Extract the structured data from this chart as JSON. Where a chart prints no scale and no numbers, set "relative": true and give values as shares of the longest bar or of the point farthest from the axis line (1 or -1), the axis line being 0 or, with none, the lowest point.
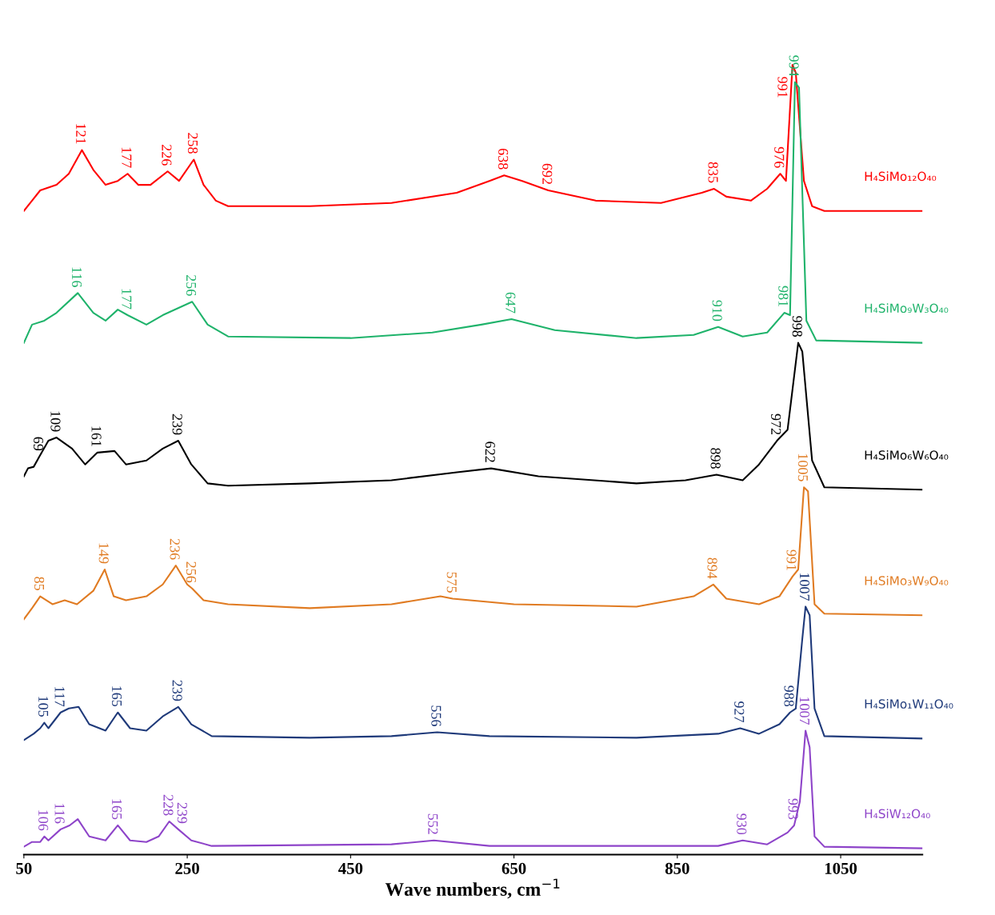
{
  "chart_data": {
    "type": "line",
    "relative": true,
    "xlabel": "Wave numbers, cm$^{−1}$",
    "xlim": [
      50,
      1150
    ],
    "xticks": [
      50,
      250,
      450,
      650,
      850,
      1050
    ],
    "grid": false,
    "legend": false,
    "marker": "none",
    "line_style": "solid",
    "series": [
      {
        "name": "H₄SiMo₁₂O₄₀",
        "color": "#ff0000",
        "x": [
          50,
          60,
          70,
          90,
          105,
          121,
          135,
          150,
          165,
          177,
          190,
          205,
          226,
          240,
          258,
          270,
          285,
          300,
          400,
          500,
          580,
          620,
          638,
          660,
          692,
          750,
          830,
          880,
          895,
          910,
          940,
          960,
          976,
          983,
          991,
          995,
          1005,
          1015,
          1030,
          1150
        ],
        "values": [
          0.815,
          0.828,
          0.841,
          0.848,
          0.862,
          0.892,
          0.867,
          0.848,
          0.853,
          0.862,
          0.848,
          0.848,
          0.865,
          0.853,
          0.88,
          0.848,
          0.828,
          0.821,
          0.821,
          0.825,
          0.838,
          0.853,
          0.86,
          0.853,
          0.841,
          0.828,
          0.825,
          0.838,
          0.843,
          0.833,
          0.828,
          0.843,
          0.862,
          0.853,
          1.0,
          0.99,
          0.853,
          0.821,
          0.815,
          0.815
        ]
      },
      {
        "name": "H₄SiMo₉W₃O₄₀",
        "color": "#1fb36b",
        "x": [
          50,
          60,
          75,
          90,
          116,
          135,
          150,
          165,
          177,
          200,
          220,
          256,
          275,
          300,
          450,
          550,
          610,
          647,
          700,
          800,
          870,
          900,
          930,
          960,
          981,
          988,
          994,
          999,
          1008,
          1020,
          1150
        ],
        "values": [
          0.648,
          0.671,
          0.676,
          0.686,
          0.711,
          0.686,
          0.676,
          0.69,
          0.683,
          0.671,
          0.683,
          0.7,
          0.671,
          0.656,
          0.654,
          0.661,
          0.671,
          0.678,
          0.664,
          0.654,
          0.658,
          0.668,
          0.656,
          0.661,
          0.686,
          0.683,
          0.978,
          0.971,
          0.676,
          0.651,
          0.648
        ]
      },
      {
        "name": "H₄SiMo₆W₆O₄₀",
        "color": "#000000",
        "x": [
          50,
          55,
          62,
          69,
          80,
          90,
          109,
          125,
          140,
          161,
          175,
          200,
          220,
          239,
          255,
          275,
          300,
          400,
          500,
          580,
          622,
          680,
          800,
          860,
          898,
          930,
          950,
          972,
          985,
          998,
          1003,
          1015,
          1030,
          1150
        ],
        "values": [
          0.479,
          0.489,
          0.491,
          0.504,
          0.524,
          0.528,
          0.514,
          0.494,
          0.509,
          0.511,
          0.494,
          0.499,
          0.514,
          0.524,
          0.494,
          0.47,
          0.467,
          0.47,
          0.474,
          0.484,
          0.489,
          0.479,
          0.47,
          0.474,
          0.481,
          0.474,
          0.494,
          0.524,
          0.538,
          0.648,
          0.637,
          0.499,
          0.465,
          0.462
        ]
      },
      {
        "name": "H₄SiMo₃W₉O₄₀",
        "color": "#e07b22",
        "x": [
          50,
          60,
          70,
          85,
          100,
          115,
          135,
          149,
          160,
          175,
          200,
          220,
          236,
          250,
          256,
          270,
          300,
          400,
          500,
          560,
          575,
          650,
          800,
          870,
          894,
          910,
          950,
          975,
          991,
          998,
          1005,
          1010,
          1018,
          1030,
          1150
        ],
        "values": [
          0.298,
          0.312,
          0.327,
          0.317,
          0.322,
          0.317,
          0.334,
          0.361,
          0.327,
          0.322,
          0.327,
          0.342,
          0.366,
          0.342,
          0.337,
          0.322,
          0.317,
          0.312,
          0.317,
          0.327,
          0.324,
          0.317,
          0.314,
          0.327,
          0.342,
          0.324,
          0.317,
          0.327,
          0.352,
          0.361,
          0.465,
          0.46,
          0.317,
          0.305,
          0.303
        ]
      },
      {
        "name": "H₄SiMo₁W₁₁O₄₀",
        "color": "#1f3a7a",
        "x": [
          50,
          62,
          70,
          75,
          80,
          95,
          105,
          117,
          130,
          150,
          165,
          180,
          200,
          220,
          239,
          255,
          280,
          400,
          500,
          556,
          620,
          800,
          900,
          927,
          950,
          975,
          988,
          995,
          1003,
          1007,
          1012,
          1018,
          1030,
          1150
        ],
        "values": [
          0.145,
          0.153,
          0.16,
          0.167,
          0.16,
          0.18,
          0.185,
          0.187,
          0.165,
          0.157,
          0.18,
          0.16,
          0.157,
          0.175,
          0.187,
          0.165,
          0.15,
          0.148,
          0.15,
          0.155,
          0.15,
          0.148,
          0.153,
          0.16,
          0.153,
          0.165,
          0.18,
          0.185,
          0.273,
          0.314,
          0.303,
          0.185,
          0.15,
          0.147
        ]
      },
      {
        "name": "H₄SiW₁₂O₄₀",
        "color": "#8e44c9",
        "x": [
          50,
          60,
          70,
          75,
          80,
          95,
          106,
          116,
          130,
          150,
          165,
          180,
          200,
          215,
          228,
          239,
          255,
          280,
          500,
          552,
          620,
          900,
          930,
          960,
          985,
          993,
          1000,
          1007,
          1012,
          1018,
          1030,
          1150
        ],
        "values": [
          0.01,
          0.016,
          0.016,
          0.023,
          0.018,
          0.032,
          0.037,
          0.045,
          0.023,
          0.018,
          0.037,
          0.018,
          0.016,
          0.023,
          0.042,
          0.032,
          0.018,
          0.011,
          0.013,
          0.018,
          0.011,
          0.011,
          0.018,
          0.013,
          0.028,
          0.037,
          0.067,
          0.157,
          0.136,
          0.023,
          0.01,
          0.008
        ]
      }
    ],
    "annotations": [
      {
        "text": "121",
        "x": 121,
        "y": 0.892
      },
      {
        "text": "177",
        "x": 177,
        "y": 0.862
      },
      {
        "text": "226",
        "x": 226,
        "y": 0.865
      },
      {
        "text": "258",
        "x": 258,
        "y": 0.88
      },
      {
        "text": "638",
        "x": 638,
        "y": 0.86
      },
      {
        "text": "692",
        "x": 692,
        "y": 0.841
      },
      {
        "text": "835",
        "x": 895,
        "y": 0.843
      },
      {
        "text": "976",
        "x": 976,
        "y": 0.862
      },
      {
        "text": "991",
        "x": 991,
        "y": 1.0
      },
      {
        "text": "116",
        "x": 116,
        "y": 0.711
      },
      {
        "text": "177",
        "x": 177,
        "y": 0.683
      },
      {
        "text": "256",
        "x": 256,
        "y": 0.7
      },
      {
        "text": "647",
        "x": 647,
        "y": 0.678
      },
      {
        "text": "910",
        "x": 900,
        "y": 0.668
      },
      {
        "text": "981",
        "x": 981,
        "y": 0.686
      },
      {
        "text": "994",
        "x": 994,
        "y": 0.978
      },
      {
        "text": "69",
        "x": 69,
        "y": 0.504
      },
      {
        "text": "109",
        "x": 90,
        "y": 0.528
      },
      {
        "text": "161",
        "x": 140,
        "y": 0.509
      },
      {
        "text": "239",
        "x": 239,
        "y": 0.524
      },
      {
        "text": "622",
        "x": 622,
        "y": 0.489
      },
      {
        "text": "898",
        "x": 898,
        "y": 0.481
      },
      {
        "text": "972",
        "x": 972,
        "y": 0.524
      },
      {
        "text": "998",
        "x": 998,
        "y": 0.648
      },
      {
        "text": "85",
        "x": 70,
        "y": 0.327
      },
      {
        "text": "149",
        "x": 149,
        "y": 0.361
      },
      {
        "text": "236",
        "x": 236,
        "y": 0.366
      },
      {
        "text": "256",
        "x": 256,
        "y": 0.337
      },
      {
        "text": "575",
        "x": 575,
        "y": 0.324
      },
      {
        "text": "894",
        "x": 894,
        "y": 0.342
      },
      {
        "text": "991",
        "x": 991,
        "y": 0.352
      },
      {
        "text": "1005",
        "x": 1005,
        "y": 0.465
      },
      {
        "text": "105",
        "x": 75,
        "y": 0.167
      },
      {
        "text": "117",
        "x": 95,
        "y": 0.18
      },
      {
        "text": "165",
        "x": 165,
        "y": 0.18
      },
      {
        "text": "239",
        "x": 239,
        "y": 0.187
      },
      {
        "text": "556",
        "x": 556,
        "y": 0.155
      },
      {
        "text": "927",
        "x": 927,
        "y": 0.16
      },
      {
        "text": "988",
        "x": 988,
        "y": 0.18
      },
      {
        "text": "1007",
        "x": 1007,
        "y": 0.314
      },
      {
        "text": "106",
        "x": 75,
        "y": 0.023
      },
      {
        "text": "116",
        "x": 95,
        "y": 0.032
      },
      {
        "text": "165",
        "x": 165,
        "y": 0.037
      },
      {
        "text": "228",
        "x": 228,
        "y": 0.042
      },
      {
        "text": "239",
        "x": 245,
        "y": 0.032
      },
      {
        "text": "552",
        "x": 552,
        "y": 0.018
      },
      {
        "text": "930",
        "x": 930,
        "y": 0.018
      },
      {
        "text": "993",
        "x": 993,
        "y": 0.037
      },
      {
        "text": "1007",
        "x": 1007,
        "y": 0.157
      }
    ]
  }
}
